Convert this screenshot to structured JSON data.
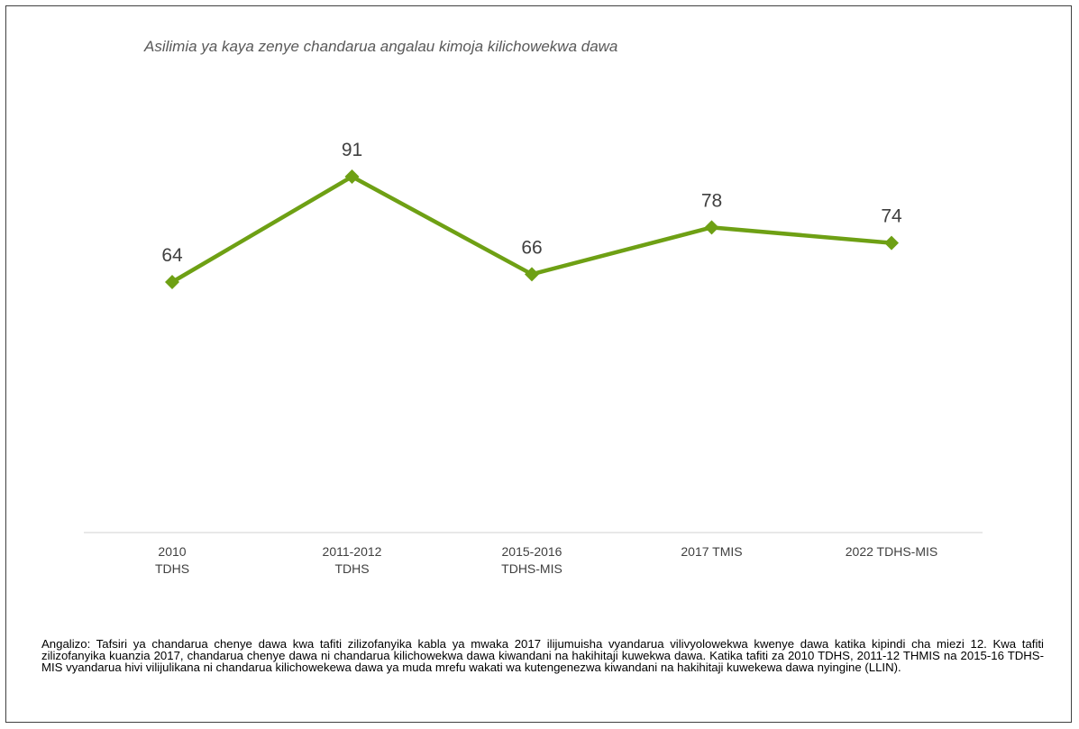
{
  "chart_data": {
    "type": "line",
    "title": "Asilimia ya kaya zenye chandarua angalau kimoja kilichowekwa dawa",
    "categories": [
      [
        "2010",
        "TDHS"
      ],
      [
        "2011-2012",
        "TDHS"
      ],
      [
        "2015-2016",
        "TDHS-MIS"
      ],
      [
        "2017 TMIS"
      ],
      [
        "2022 TDHS-MIS"
      ]
    ],
    "series": [
      {
        "values": [
          64,
          91,
          66,
          78,
          74
        ],
        "color": "#6EA014"
      }
    ],
    "data_labels": [
      "64",
      "91",
      "66",
      "78",
      "74"
    ],
    "ylim": [
      0,
      100
    ],
    "grid": false,
    "marker": "diamond",
    "axis_color": "#d9d9d9"
  },
  "note": "Angalizo: Tafsiri ya chandarua chenye dawa kwa tafiti zilizofanyika kabla ya mwaka 2017 ilijumuisha vyandarua vilivyolowekwa kwenye dawa katika kipindi cha miezi 12. Kwa tafiti zilizofanyika kuanzia 2017, chandarua chenye dawa ni chandarua kilichowekwa dawa kiwandani na hakihitaji kuwekwa dawa. Katika tafiti za 2010 TDHS, 2011-12 THMIS na 2015-16 TDHS-MIS vyandarua hivi vilijulikana ni chandarua kilichowekewa dawa ya muda mrefu wakati wa kutengenezwa kiwandani na hakihitaji kuwekewa dawa nyingine (LLIN)."
}
